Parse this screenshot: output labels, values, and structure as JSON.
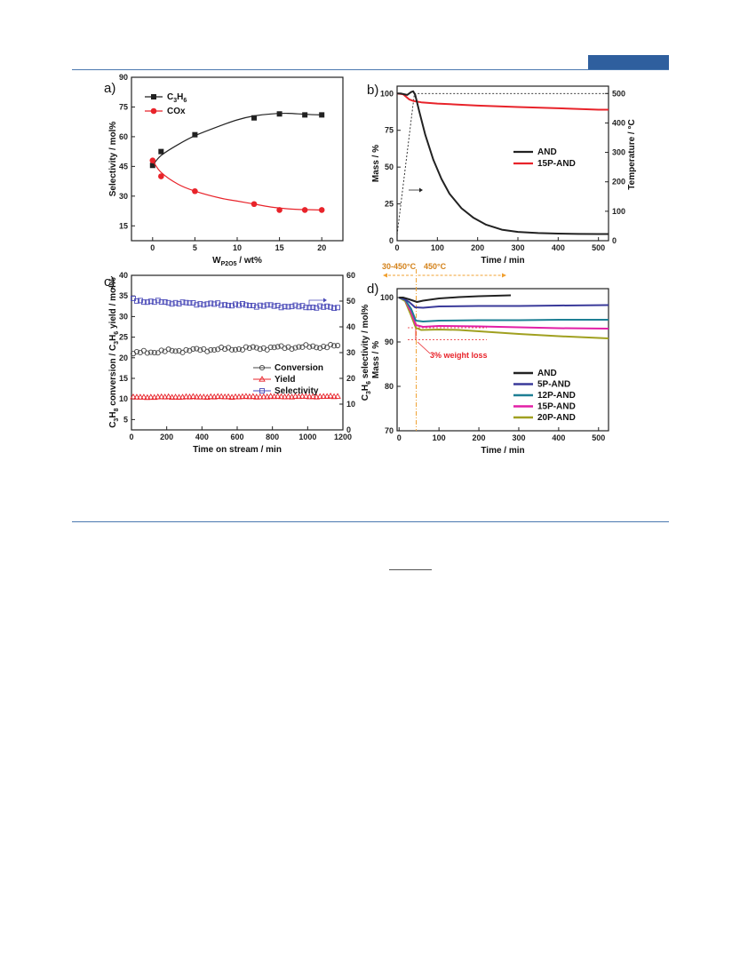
{
  "colors": {
    "rule": "#4a78b0",
    "tab": "#2f5f9e",
    "black": "#222222",
    "red": "#e8232a",
    "blue": "#4a4ab8",
    "gray": "#444444",
    "navy": "#3a3a9a",
    "teal": "#1e7f94",
    "magenta": "#e21fa6",
    "olive": "#a0a020",
    "orange": "#f0a030",
    "orange_text": "#d4821a",
    "loss_red": "#e8232a"
  },
  "chart_data": [
    {
      "id": "a",
      "type": "line",
      "panel_label": "a)",
      "xlabel_main": "W",
      "xlabel_sub": "P2O5",
      "xlabel_rest": " / wt%",
      "ylabel": "Selectivity / mol%",
      "xlim": [
        -2.5,
        22.5
      ],
      "ylim": [
        7.5,
        90
      ],
      "xticks": [
        0,
        5,
        10,
        15,
        20
      ],
      "yticks": [
        15,
        30,
        45,
        60,
        75,
        90
      ],
      "legend_position": "top-left",
      "series": [
        {
          "name": "C3H6",
          "label_main": "C",
          "label_sub1": "3",
          "label_mid": "H",
          "label_sub2": "6",
          "marker": "square",
          "color": "#222222",
          "points": [
            [
              0,
              45.5
            ],
            [
              1,
              52.5
            ],
            [
              5,
              61
            ],
            [
              12,
              69.5
            ],
            [
              15,
              71.5
            ],
            [
              18,
              71
            ],
            [
              20,
              71
            ]
          ],
          "fit": [
            [
              0,
              45.5
            ],
            [
              1,
              50.5
            ],
            [
              3,
              56
            ],
            [
              5,
              60.5
            ],
            [
              8,
              65.5
            ],
            [
              10,
              68.5
            ],
            [
              12,
              70.5
            ],
            [
              14,
              71.5
            ],
            [
              16,
              71.8
            ],
            [
              18,
              71.3
            ],
            [
              20,
              71
            ]
          ]
        },
        {
          "name": "COx",
          "label_main": "COx",
          "marker": "circle",
          "color": "#e8232a",
          "points": [
            [
              0,
              48
            ],
            [
              1,
              40
            ],
            [
              5,
              32.5
            ],
            [
              12,
              26
            ],
            [
              15,
              23
            ],
            [
              18,
              23
            ],
            [
              20,
              23
            ]
          ],
          "fit": [
            [
              0,
              48
            ],
            [
              1,
              42
            ],
            [
              3,
              36
            ],
            [
              5,
              32.5
            ],
            [
              8,
              29
            ],
            [
              10,
              27.5
            ],
            [
              12,
              26
            ],
            [
              14,
              24.5
            ],
            [
              16,
              23.6
            ],
            [
              18,
              23.2
            ],
            [
              20,
              23
            ]
          ]
        }
      ]
    },
    {
      "id": "b",
      "type": "line",
      "panel_label": "b)",
      "xlabel": "Time / min",
      "ylabel": "Mass / %",
      "ylabel_right": "Temperature / °C",
      "xlim": [
        0,
        525
      ],
      "ylim": [
        0,
        105
      ],
      "ylim_right": [
        0,
        525
      ],
      "xticks": [
        0,
        100,
        200,
        300,
        400,
        500
      ],
      "yticks": [
        0,
        25,
        50,
        75,
        100
      ],
      "yticks_right": [
        0,
        100,
        200,
        300,
        400,
        500
      ],
      "legend_position": "center-right",
      "series": [
        {
          "name": "AND",
          "color": "#222222",
          "points": [
            [
              0,
              100
            ],
            [
              10,
              100
            ],
            [
              25,
              99
            ],
            [
              35,
              101
            ],
            [
              40,
              101.5
            ],
            [
              45,
              99
            ],
            [
              55,
              88
            ],
            [
              70,
              72
            ],
            [
              90,
              55
            ],
            [
              110,
              42
            ],
            [
              130,
              32
            ],
            [
              160,
              22
            ],
            [
              190,
              15.5
            ],
            [
              220,
              11
            ],
            [
              260,
              7.5
            ],
            [
              300,
              6
            ],
            [
              350,
              5.2
            ],
            [
              400,
              4.8
            ],
            [
              450,
              4.6
            ],
            [
              500,
              4.5
            ],
            [
              525,
              4.5
            ]
          ]
        },
        {
          "name": "15P-AND",
          "color": "#e8232a",
          "points": [
            [
              0,
              100
            ],
            [
              15,
              99.5
            ],
            [
              30,
              96
            ],
            [
              40,
              95
            ],
            [
              60,
              94
            ],
            [
              100,
              93.2
            ],
            [
              150,
              92.5
            ],
            [
              200,
              91.8
            ],
            [
              300,
              90.8
            ],
            [
              400,
              90
            ],
            [
              500,
              89
            ],
            [
              525,
              89
            ]
          ]
        },
        {
          "name": "Temperature",
          "axis": "right",
          "style": "dotted",
          "color": "#222222",
          "points": [
            [
              0,
              20
            ],
            [
              43,
              500
            ],
            [
              525,
              500
            ]
          ]
        }
      ]
    },
    {
      "id": "c",
      "type": "scatter",
      "panel_label": "c)",
      "xlabel": "Time on stream / min",
      "ylabel": "C3H8 conversion / C3H6 yield / mol%",
      "ylabel_parts": [
        "C",
        "3",
        "H",
        "8",
        " conversion / C",
        "3",
        "H",
        "6",
        " yield / mol%"
      ],
      "ylabel_right": "C3H6 selectivity / mol%",
      "ylabel_right_parts": [
        "C",
        "3",
        "H",
        "6",
        " selectivity / mol%"
      ],
      "xlim": [
        0,
        1200
      ],
      "ylim": [
        2.5,
        40
      ],
      "ylim_right": [
        0,
        60
      ],
      "xticks": [
        0,
        200,
        400,
        600,
        800,
        1000,
        1200
      ],
      "yticks": [
        5,
        10,
        15,
        20,
        25,
        30,
        35,
        40
      ],
      "yticks_right": [
        0,
        10,
        20,
        30,
        40,
        50,
        60
      ],
      "legend_position": "center-right",
      "series": [
        {
          "name": "Conversion",
          "marker": "circle-open",
          "color": "#444444",
          "axis": "left",
          "start": 21,
          "end": 22.8,
          "noise": 0.5,
          "step": 20,
          "t0": 10,
          "t1": 1170
        },
        {
          "name": "Yield",
          "marker": "triangle-open",
          "color": "#e8232a",
          "axis": "left",
          "start": 10.4,
          "end": 10.6,
          "noise": 0.12,
          "step": 20,
          "t0": 10,
          "t1": 1170
        },
        {
          "name": "Selectivity",
          "marker": "square-open",
          "color": "#4a4ab8",
          "axis": "right",
          "start": 50.5,
          "end": 47.5,
          "noise": 0.6,
          "step": 20,
          "t0": 10,
          "t1": 1170
        }
      ]
    },
    {
      "id": "d",
      "type": "line",
      "panel_label": "d)",
      "xlabel": "Time / min",
      "ylabel": "Mass / %",
      "xlim": [
        -5,
        525
      ],
      "ylim": [
        70,
        102
      ],
      "xticks": [
        0,
        100,
        200,
        300,
        400,
        500
      ],
      "yticks": [
        70,
        80,
        90,
        100
      ],
      "legend_position": "bottom-right",
      "annotation_range": "30-450°C",
      "annotation_range_main": "30-450",
      "annotation_hold": "450°C",
      "annotation_hold_main": "450",
      "annotation_loss": "3% weight loss",
      "series": [
        {
          "name": "AND",
          "color": "#222222",
          "points": [
            [
              0,
              100
            ],
            [
              10,
              100
            ],
            [
              25,
              99.6
            ],
            [
              45,
              99
            ],
            [
              60,
              99.3
            ],
            [
              100,
              99.8
            ],
            [
              150,
              100.1
            ],
            [
              200,
              100.3
            ],
            [
              280,
              100.5
            ]
          ]
        },
        {
          "name": "5P-AND",
          "color": "#3a3a9a",
          "points": [
            [
              0,
              100
            ],
            [
              10,
              99.8
            ],
            [
              25,
              99
            ],
            [
              40,
              97.8
            ],
            [
              60,
              97.7
            ],
            [
              100,
              98
            ],
            [
              200,
              98.1
            ],
            [
              300,
              98.1
            ],
            [
              400,
              98.2
            ],
            [
              525,
              98.3
            ]
          ]
        },
        {
          "name": "12P-AND",
          "color": "#1e7f94",
          "points": [
            [
              0,
              100
            ],
            [
              15,
              99.5
            ],
            [
              30,
              97.5
            ],
            [
              42,
              94.8
            ],
            [
              60,
              94.6
            ],
            [
              100,
              94.8
            ],
            [
              200,
              94.9
            ],
            [
              300,
              94.9
            ],
            [
              400,
              95
            ],
            [
              525,
              95
            ]
          ]
        },
        {
          "name": "15P-AND",
          "color": "#e21fa6",
          "points": [
            [
              0,
              100
            ],
            [
              15,
              99.5
            ],
            [
              30,
              96.8
            ],
            [
              42,
              93.8
            ],
            [
              60,
              93.4
            ],
            [
              100,
              93.6
            ],
            [
              200,
              93.5
            ],
            [
              300,
              93.3
            ],
            [
              400,
              93.1
            ],
            [
              525,
              93
            ]
          ]
        },
        {
          "name": "20P-AND",
          "color": "#a0a020",
          "points": [
            [
              0,
              100
            ],
            [
              15,
              99.2
            ],
            [
              30,
              96
            ],
            [
              42,
              93.2
            ],
            [
              55,
              92.7
            ],
            [
              100,
              92.8
            ],
            [
              150,
              92.7
            ],
            [
              200,
              92.4
            ],
            [
              300,
              91.8
            ],
            [
              400,
              91.3
            ],
            [
              525,
              90.8
            ]
          ]
        }
      ]
    }
  ]
}
